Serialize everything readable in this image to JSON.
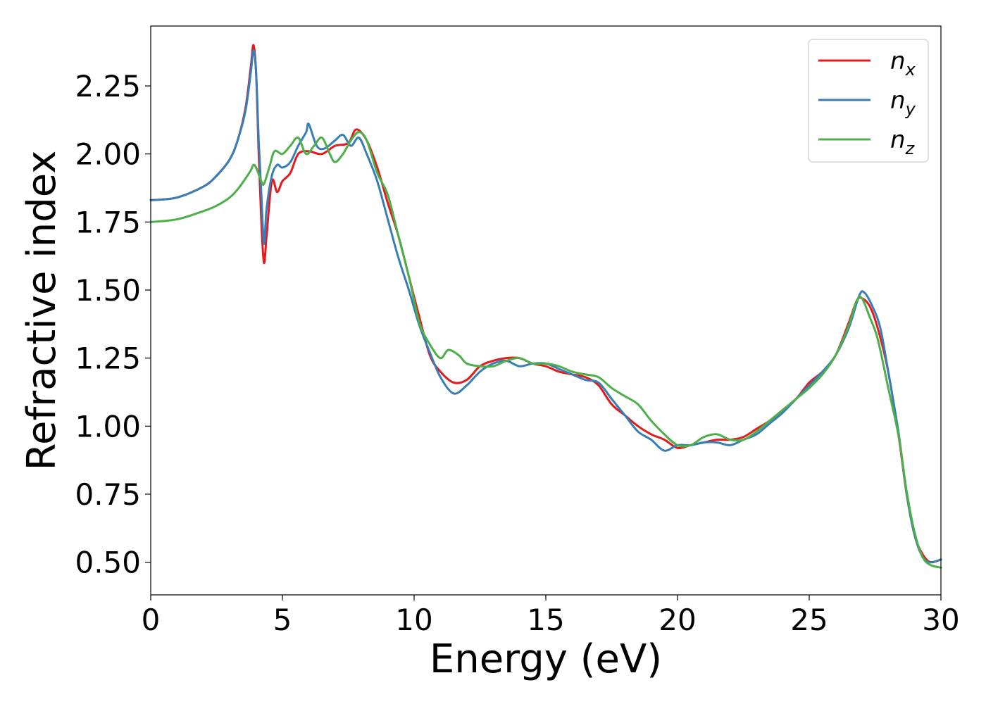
{
  "chart_data": {
    "type": "line",
    "title": "",
    "xlabel": "Energy (eV)",
    "ylabel": "Refractive index",
    "xlim": [
      0,
      30
    ],
    "ylim": [
      0.38,
      2.47
    ],
    "xticks": [
      0,
      5,
      10,
      15,
      20,
      25,
      30
    ],
    "xtick_labels": [
      "0",
      "5",
      "10",
      "15",
      "20",
      "25",
      "30"
    ],
    "yticks": [
      0.5,
      0.75,
      1.0,
      1.25,
      1.5,
      1.75,
      2.0,
      2.25
    ],
    "ytick_labels": [
      "0.50",
      "0.75",
      "1.00",
      "1.25",
      "1.50",
      "1.75",
      "2.00",
      "2.25"
    ],
    "grid": false,
    "legend_position": "top-right",
    "series": [
      {
        "name": "n_x",
        "label_base": "n",
        "label_sub": "x",
        "color": "#e41a1c",
        "x": [
          0,
          1,
          2,
          2.5,
          3,
          3.3,
          3.6,
          3.8,
          3.9,
          4.0,
          4.1,
          4.2,
          4.3,
          4.4,
          4.6,
          4.8,
          5.0,
          5.3,
          5.6,
          6.0,
          6.5,
          7.0,
          7.5,
          7.8,
          8.2,
          8.6,
          9.0,
          9.4,
          9.8,
          10.2,
          10.6,
          11.0,
          11.5,
          12.0,
          12.5,
          13.0,
          13.5,
          14.0,
          14.5,
          15.0,
          15.5,
          16.0,
          16.5,
          17.0,
          17.5,
          18.0,
          18.5,
          19.0,
          19.5,
          20.0,
          20.5,
          21.0,
          21.5,
          22.0,
          22.5,
          23.0,
          23.5,
          24.0,
          24.5,
          25.0,
          25.5,
          26.0,
          26.5,
          26.8,
          27.0,
          27.3,
          27.6,
          28.0,
          28.4,
          28.7,
          29.0,
          29.3,
          29.6,
          30.0
        ],
        "y": [
          1.83,
          1.84,
          1.88,
          1.92,
          1.98,
          2.05,
          2.17,
          2.32,
          2.4,
          2.3,
          2.0,
          1.75,
          1.6,
          1.7,
          1.9,
          1.86,
          1.9,
          1.93,
          2.0,
          2.01,
          2.0,
          2.03,
          2.04,
          2.09,
          2.05,
          1.95,
          1.82,
          1.7,
          1.55,
          1.4,
          1.26,
          1.2,
          1.16,
          1.17,
          1.22,
          1.24,
          1.25,
          1.25,
          1.23,
          1.22,
          1.2,
          1.19,
          1.18,
          1.15,
          1.08,
          1.04,
          1.0,
          0.97,
          0.95,
          0.92,
          0.93,
          0.94,
          0.95,
          0.95,
          0.96,
          0.99,
          1.02,
          1.06,
          1.1,
          1.16,
          1.2,
          1.26,
          1.38,
          1.46,
          1.47,
          1.44,
          1.36,
          1.2,
          0.96,
          0.75,
          0.6,
          0.53,
          0.5,
          0.51
        ]
      },
      {
        "name": "n_y",
        "label_base": "n",
        "label_sub": "y",
        "color": "#377eb8",
        "x": [
          0,
          1,
          2,
          2.5,
          3,
          3.3,
          3.6,
          3.8,
          3.9,
          4.0,
          4.1,
          4.2,
          4.3,
          4.4,
          4.6,
          4.8,
          5.0,
          5.3,
          5.6,
          5.9,
          6.0,
          6.3,
          6.6,
          7.0,
          7.3,
          7.6,
          7.9,
          8.2,
          8.6,
          9.0,
          9.4,
          9.8,
          10.2,
          10.6,
          11.0,
          11.5,
          12.0,
          12.5,
          13.0,
          13.5,
          14.0,
          14.5,
          15.0,
          15.5,
          16.0,
          16.5,
          17.0,
          17.5,
          18.0,
          18.5,
          19.0,
          19.5,
          20.0,
          20.5,
          21.0,
          21.5,
          22.0,
          22.5,
          23.0,
          23.5,
          24.0,
          24.5,
          25.0,
          25.5,
          26.0,
          26.5,
          26.9,
          27.1,
          27.4,
          27.7,
          28.0,
          28.4,
          28.7,
          29.0,
          29.3,
          29.6,
          30.0
        ],
        "y": [
          1.83,
          1.84,
          1.88,
          1.92,
          1.98,
          2.05,
          2.16,
          2.3,
          2.38,
          2.3,
          2.05,
          1.85,
          1.67,
          1.8,
          1.92,
          1.96,
          1.95,
          1.97,
          2.03,
          2.08,
          2.11,
          2.03,
          2.02,
          2.05,
          2.07,
          2.03,
          2.06,
          2.0,
          1.9,
          1.76,
          1.62,
          1.5,
          1.37,
          1.27,
          1.18,
          1.12,
          1.15,
          1.2,
          1.23,
          1.24,
          1.22,
          1.23,
          1.23,
          1.21,
          1.19,
          1.17,
          1.16,
          1.1,
          1.04,
          0.98,
          0.95,
          0.91,
          0.93,
          0.93,
          0.94,
          0.94,
          0.93,
          0.95,
          0.97,
          1.01,
          1.05,
          1.1,
          1.15,
          1.2,
          1.26,
          1.36,
          1.48,
          1.49,
          1.44,
          1.36,
          1.2,
          0.97,
          0.75,
          0.6,
          0.52,
          0.5,
          0.51
        ]
      },
      {
        "name": "n_z",
        "label_base": "n",
        "label_sub": "z",
        "color": "#4daf4a",
        "x": [
          0,
          1,
          2,
          2.5,
          3,
          3.3,
          3.6,
          3.8,
          3.9,
          4.0,
          4.2,
          4.3,
          4.5,
          4.7,
          5.0,
          5.3,
          5.6,
          5.9,
          6.2,
          6.5,
          6.8,
          7.0,
          7.3,
          7.6,
          7.9,
          8.2,
          8.6,
          9.0,
          9.4,
          9.8,
          10.2,
          10.6,
          11.0,
          11.3,
          11.7,
          12.0,
          12.5,
          13.0,
          13.5,
          14.0,
          14.5,
          15.0,
          15.5,
          16.0,
          16.5,
          17.0,
          17.5,
          18.0,
          18.5,
          19.0,
          19.5,
          20.0,
          20.5,
          21.0,
          21.5,
          22.0,
          22.5,
          23.0,
          23.5,
          24.0,
          24.5,
          25.0,
          25.5,
          26.0,
          26.5,
          26.8,
          27.0,
          27.3,
          27.6,
          28.0,
          28.4,
          28.7,
          29.0,
          29.3,
          29.6,
          30.0
        ],
        "y": [
          1.75,
          1.76,
          1.79,
          1.81,
          1.84,
          1.87,
          1.91,
          1.94,
          1.96,
          1.95,
          1.9,
          1.89,
          1.95,
          2.01,
          2.0,
          2.03,
          2.06,
          2.0,
          2.03,
          2.06,
          2.0,
          1.97,
          2.0,
          2.05,
          2.08,
          2.05,
          1.93,
          1.85,
          1.7,
          1.55,
          1.38,
          1.3,
          1.25,
          1.28,
          1.26,
          1.23,
          1.22,
          1.22,
          1.24,
          1.25,
          1.23,
          1.23,
          1.22,
          1.2,
          1.19,
          1.18,
          1.14,
          1.11,
          1.08,
          1.02,
          0.97,
          0.93,
          0.93,
          0.96,
          0.97,
          0.95,
          0.95,
          0.98,
          1.02,
          1.06,
          1.1,
          1.14,
          1.19,
          1.26,
          1.37,
          1.46,
          1.47,
          1.4,
          1.32,
          1.14,
          0.96,
          0.76,
          0.61,
          0.52,
          0.49,
          0.48
        ]
      }
    ]
  }
}
